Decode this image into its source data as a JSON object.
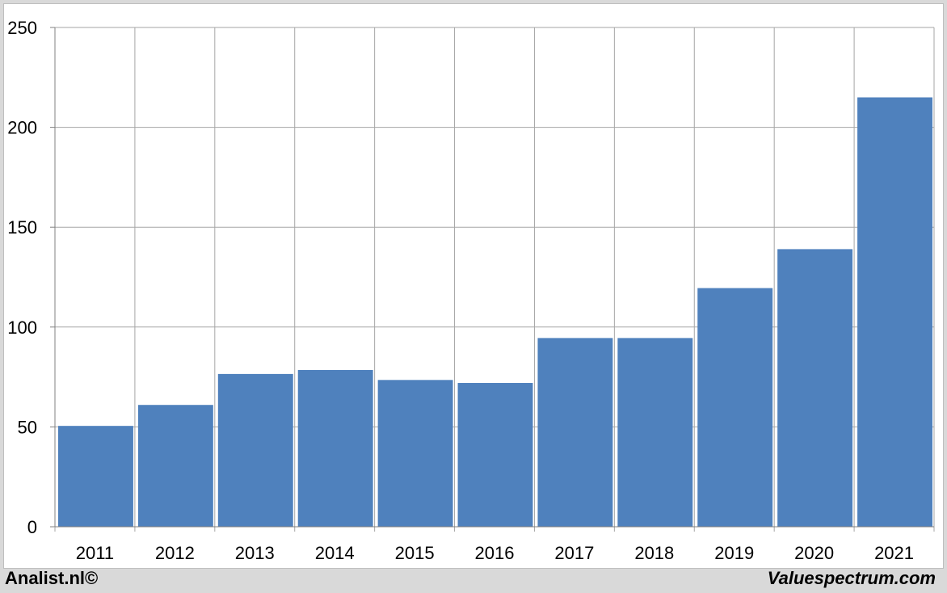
{
  "chart_data": {
    "type": "bar",
    "categories": [
      "2011",
      "2012",
      "2013",
      "2014",
      "2015",
      "2016",
      "2017",
      "2018",
      "2019",
      "2020",
      "2021"
    ],
    "values": [
      50.5,
      61,
      76.5,
      78.5,
      73.5,
      72,
      94.5,
      94.5,
      119.5,
      139,
      215
    ],
    "title": "",
    "xlabel": "",
    "ylabel": "",
    "ylim": [
      0,
      250
    ],
    "yticks": [
      "0",
      "50",
      "100",
      "150",
      "200",
      "250"
    ],
    "grid": true,
    "bar_color": "#4f81bd",
    "grid_color": "#a6a6a6"
  },
  "footer": {
    "left_text": "Analist.nl©",
    "right_text": "Valuespectrum.com"
  }
}
